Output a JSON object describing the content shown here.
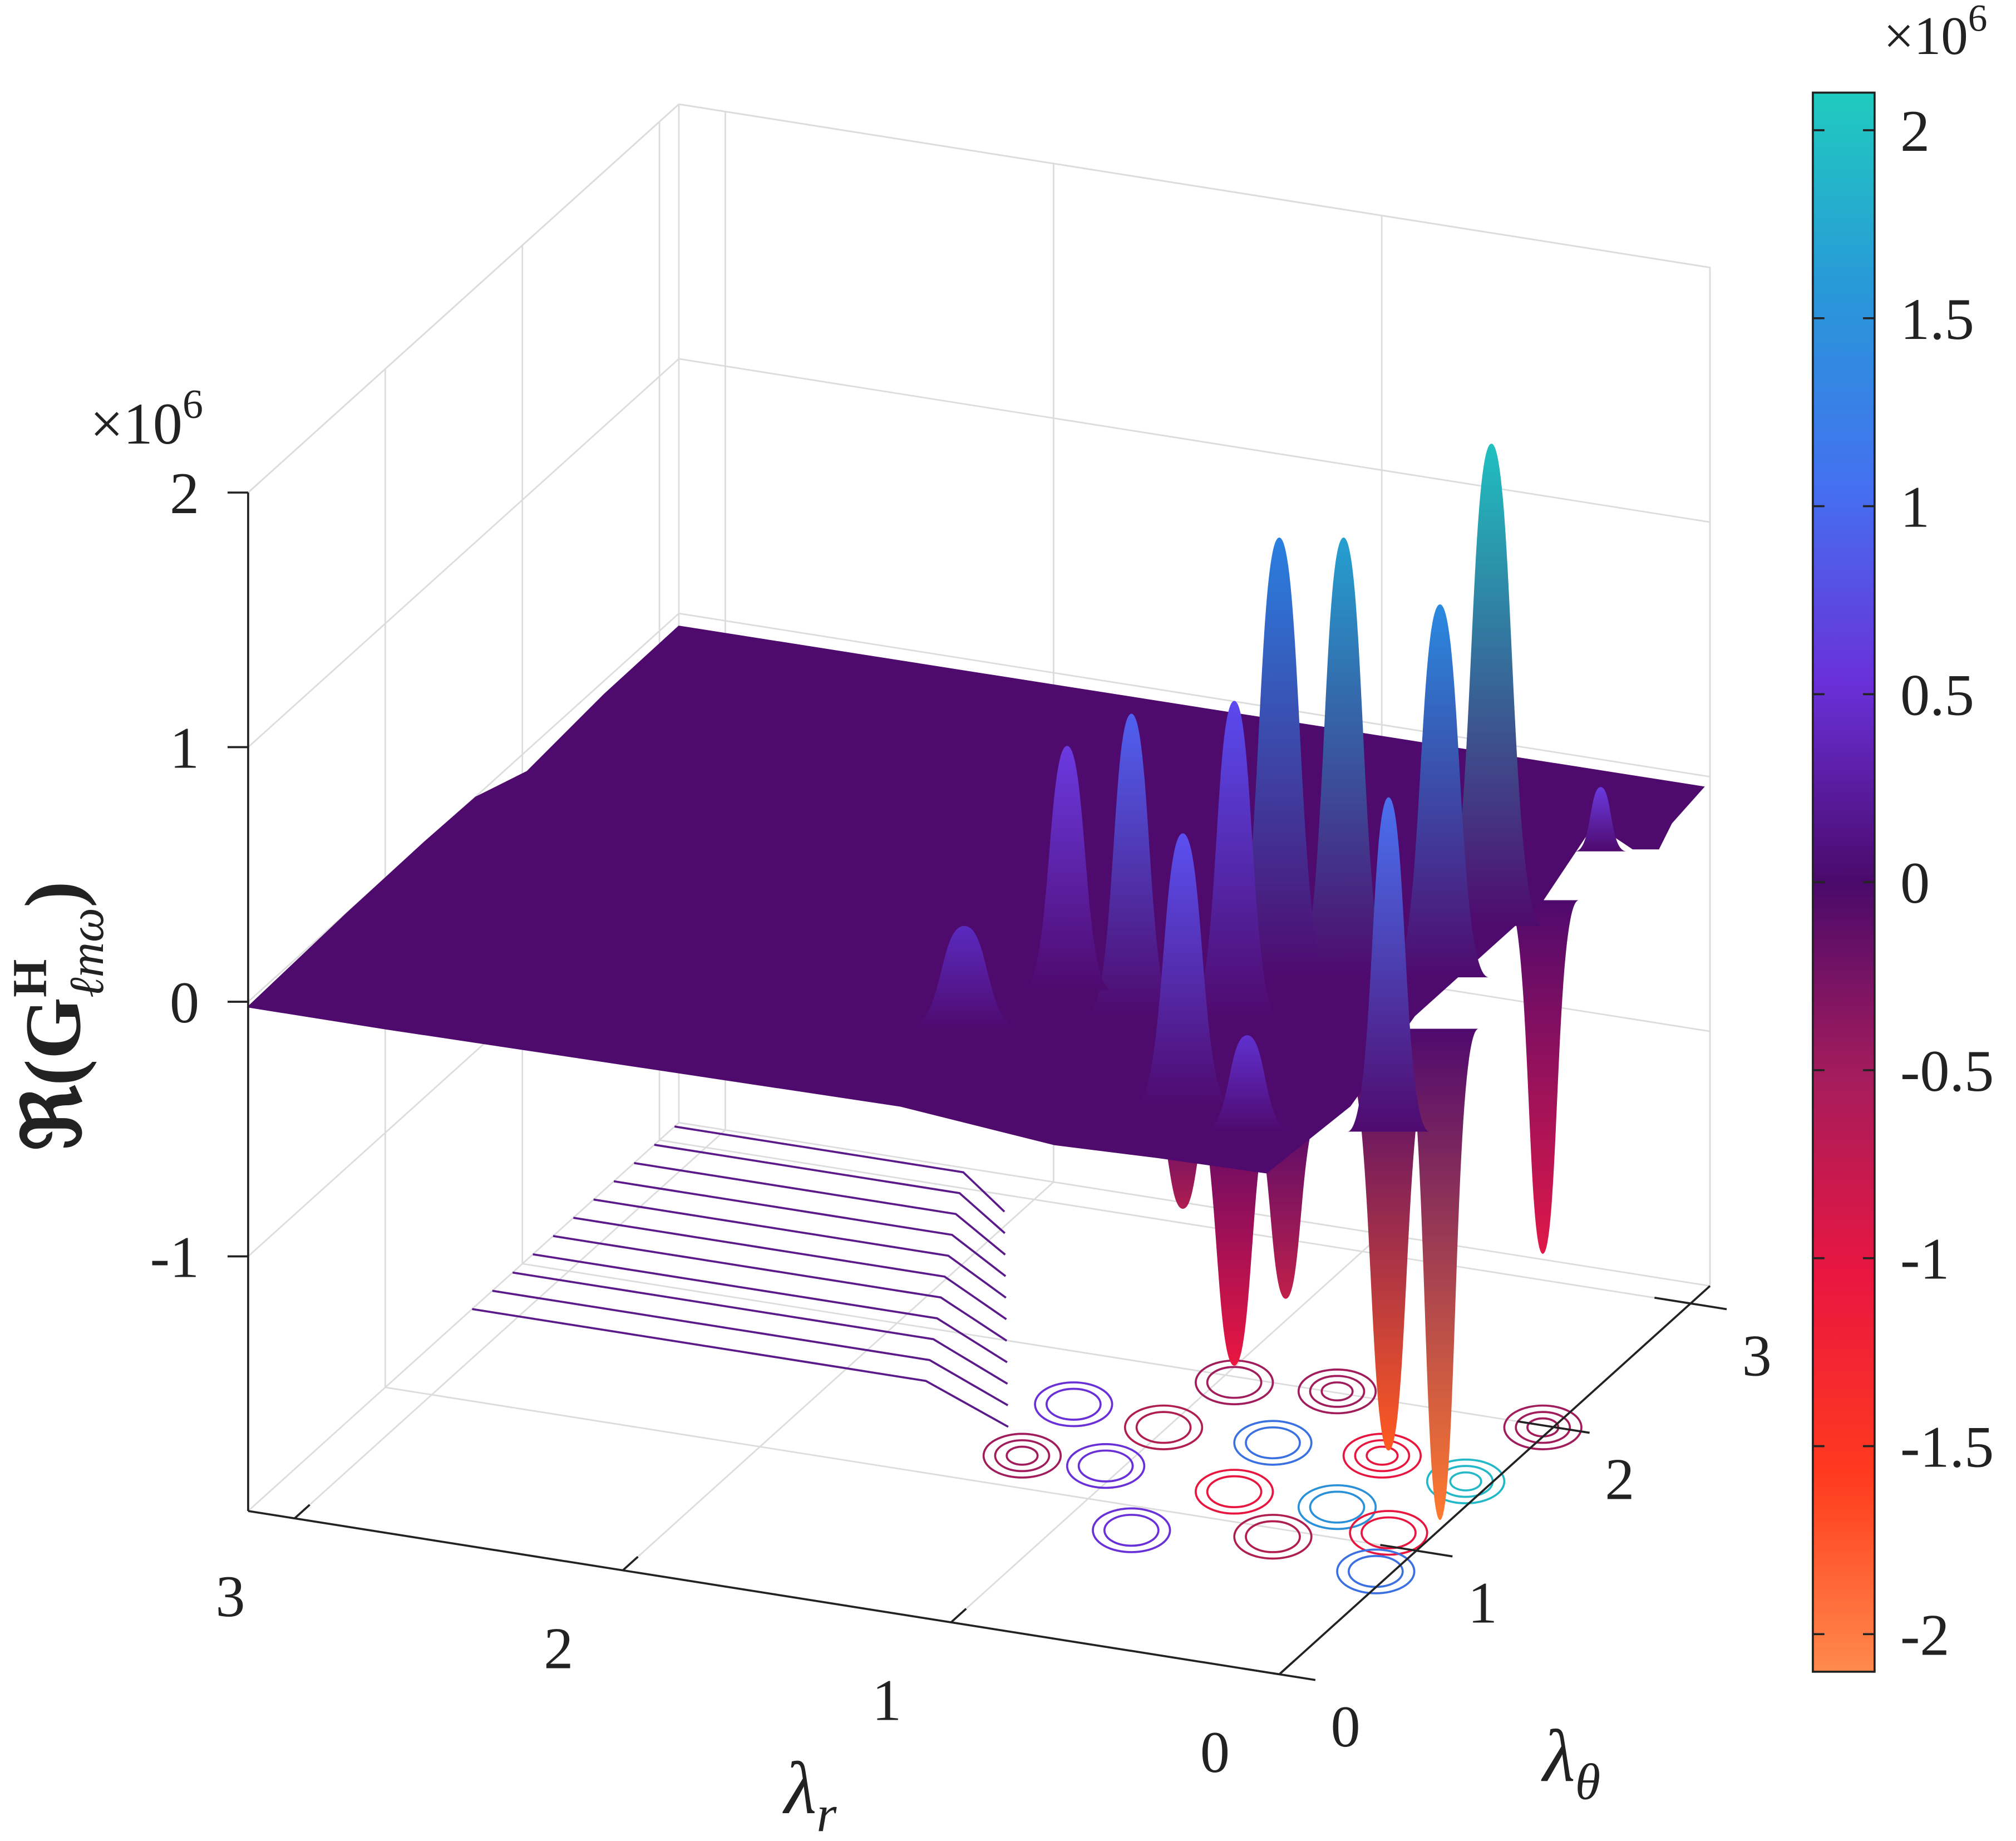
{
  "chart_data": {
    "type": "surface",
    "xlabel": {
      "symbol": "λ",
      "sub": "r"
    },
    "ylabel": {
      "symbol": "λ",
      "sub": "θ"
    },
    "zlabel": {
      "prefix": "ℜ(",
      "main": "G",
      "sup": "H",
      "sub": "ℓmω",
      "suffix": ")"
    },
    "z_multiplier": {
      "base": "×10",
      "sup": "6"
    },
    "xlim": [
      0,
      3.1416
    ],
    "xticks": [
      0,
      1,
      2,
      3
    ],
    "ylim": [
      0,
      3.1416
    ],
    "yticks": [
      0,
      1,
      2,
      3
    ],
    "zlim": [
      -2,
      2
    ],
    "zticks": [
      -1,
      0,
      1,
      2
    ],
    "grid": true,
    "colorbar": {
      "clim": [
        -2.1,
        2.1
      ],
      "ticks": [
        -2,
        -1.5,
        -1,
        -0.5,
        0,
        0.5,
        1,
        1.5,
        2
      ],
      "multiplier": {
        "base": "×10",
        "sup": "6"
      },
      "colormap": [
        "#ff8a4c",
        "#ff3a1e",
        "#ea1640",
        "#a61c5c",
        "#4a0a6b",
        "#6a30d8",
        "#4470f0",
        "#2898d8",
        "#20cbbf"
      ]
    }
  }
}
